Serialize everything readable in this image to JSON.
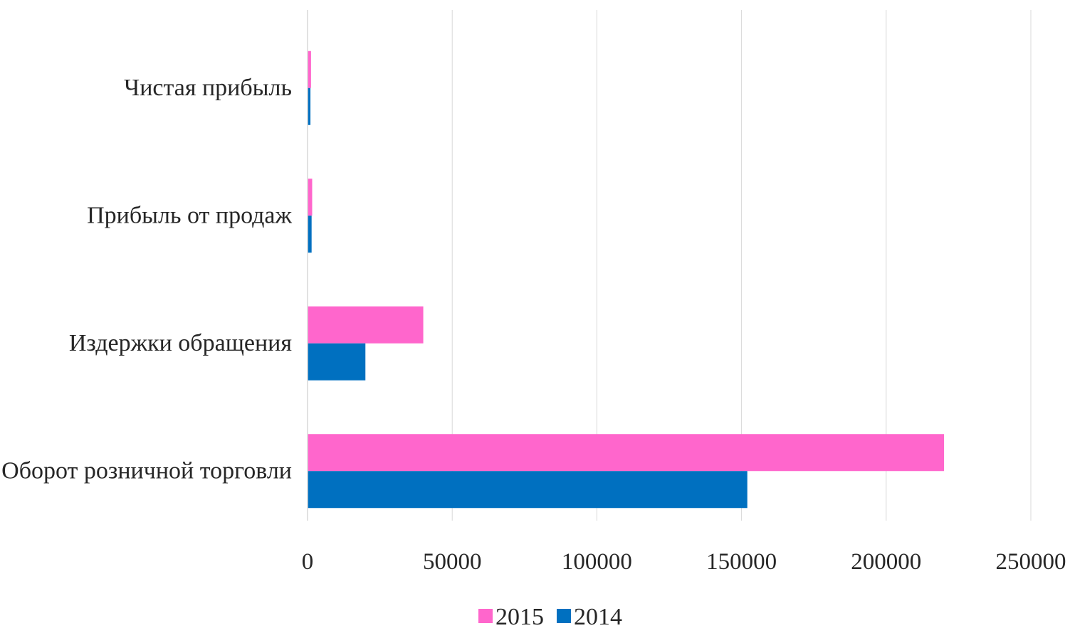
{
  "chart_data": {
    "type": "bar",
    "orientation": "horizontal",
    "categories": [
      "Чистая прибыль",
      "Прибыль от продаж",
      "Издержки обращения",
      "Оборот розничной торговли"
    ],
    "series": [
      {
        "name": "2015",
        "color": "#ff66cc",
        "values": [
          1200,
          1600,
          40000,
          220000
        ]
      },
      {
        "name": "2014",
        "color": "#0070c0",
        "values": [
          1000,
          1400,
          20000,
          152000
        ]
      }
    ],
    "xlim": [
      0,
      250000
    ],
    "xticks": [
      "0",
      "50000",
      "100000",
      "150000",
      "200000",
      "250000"
    ],
    "grid": true,
    "legend": {
      "position": "bottom",
      "entries": [
        "2015",
        "2014"
      ]
    },
    "title": "",
    "xlabel": "",
    "ylabel": ""
  }
}
